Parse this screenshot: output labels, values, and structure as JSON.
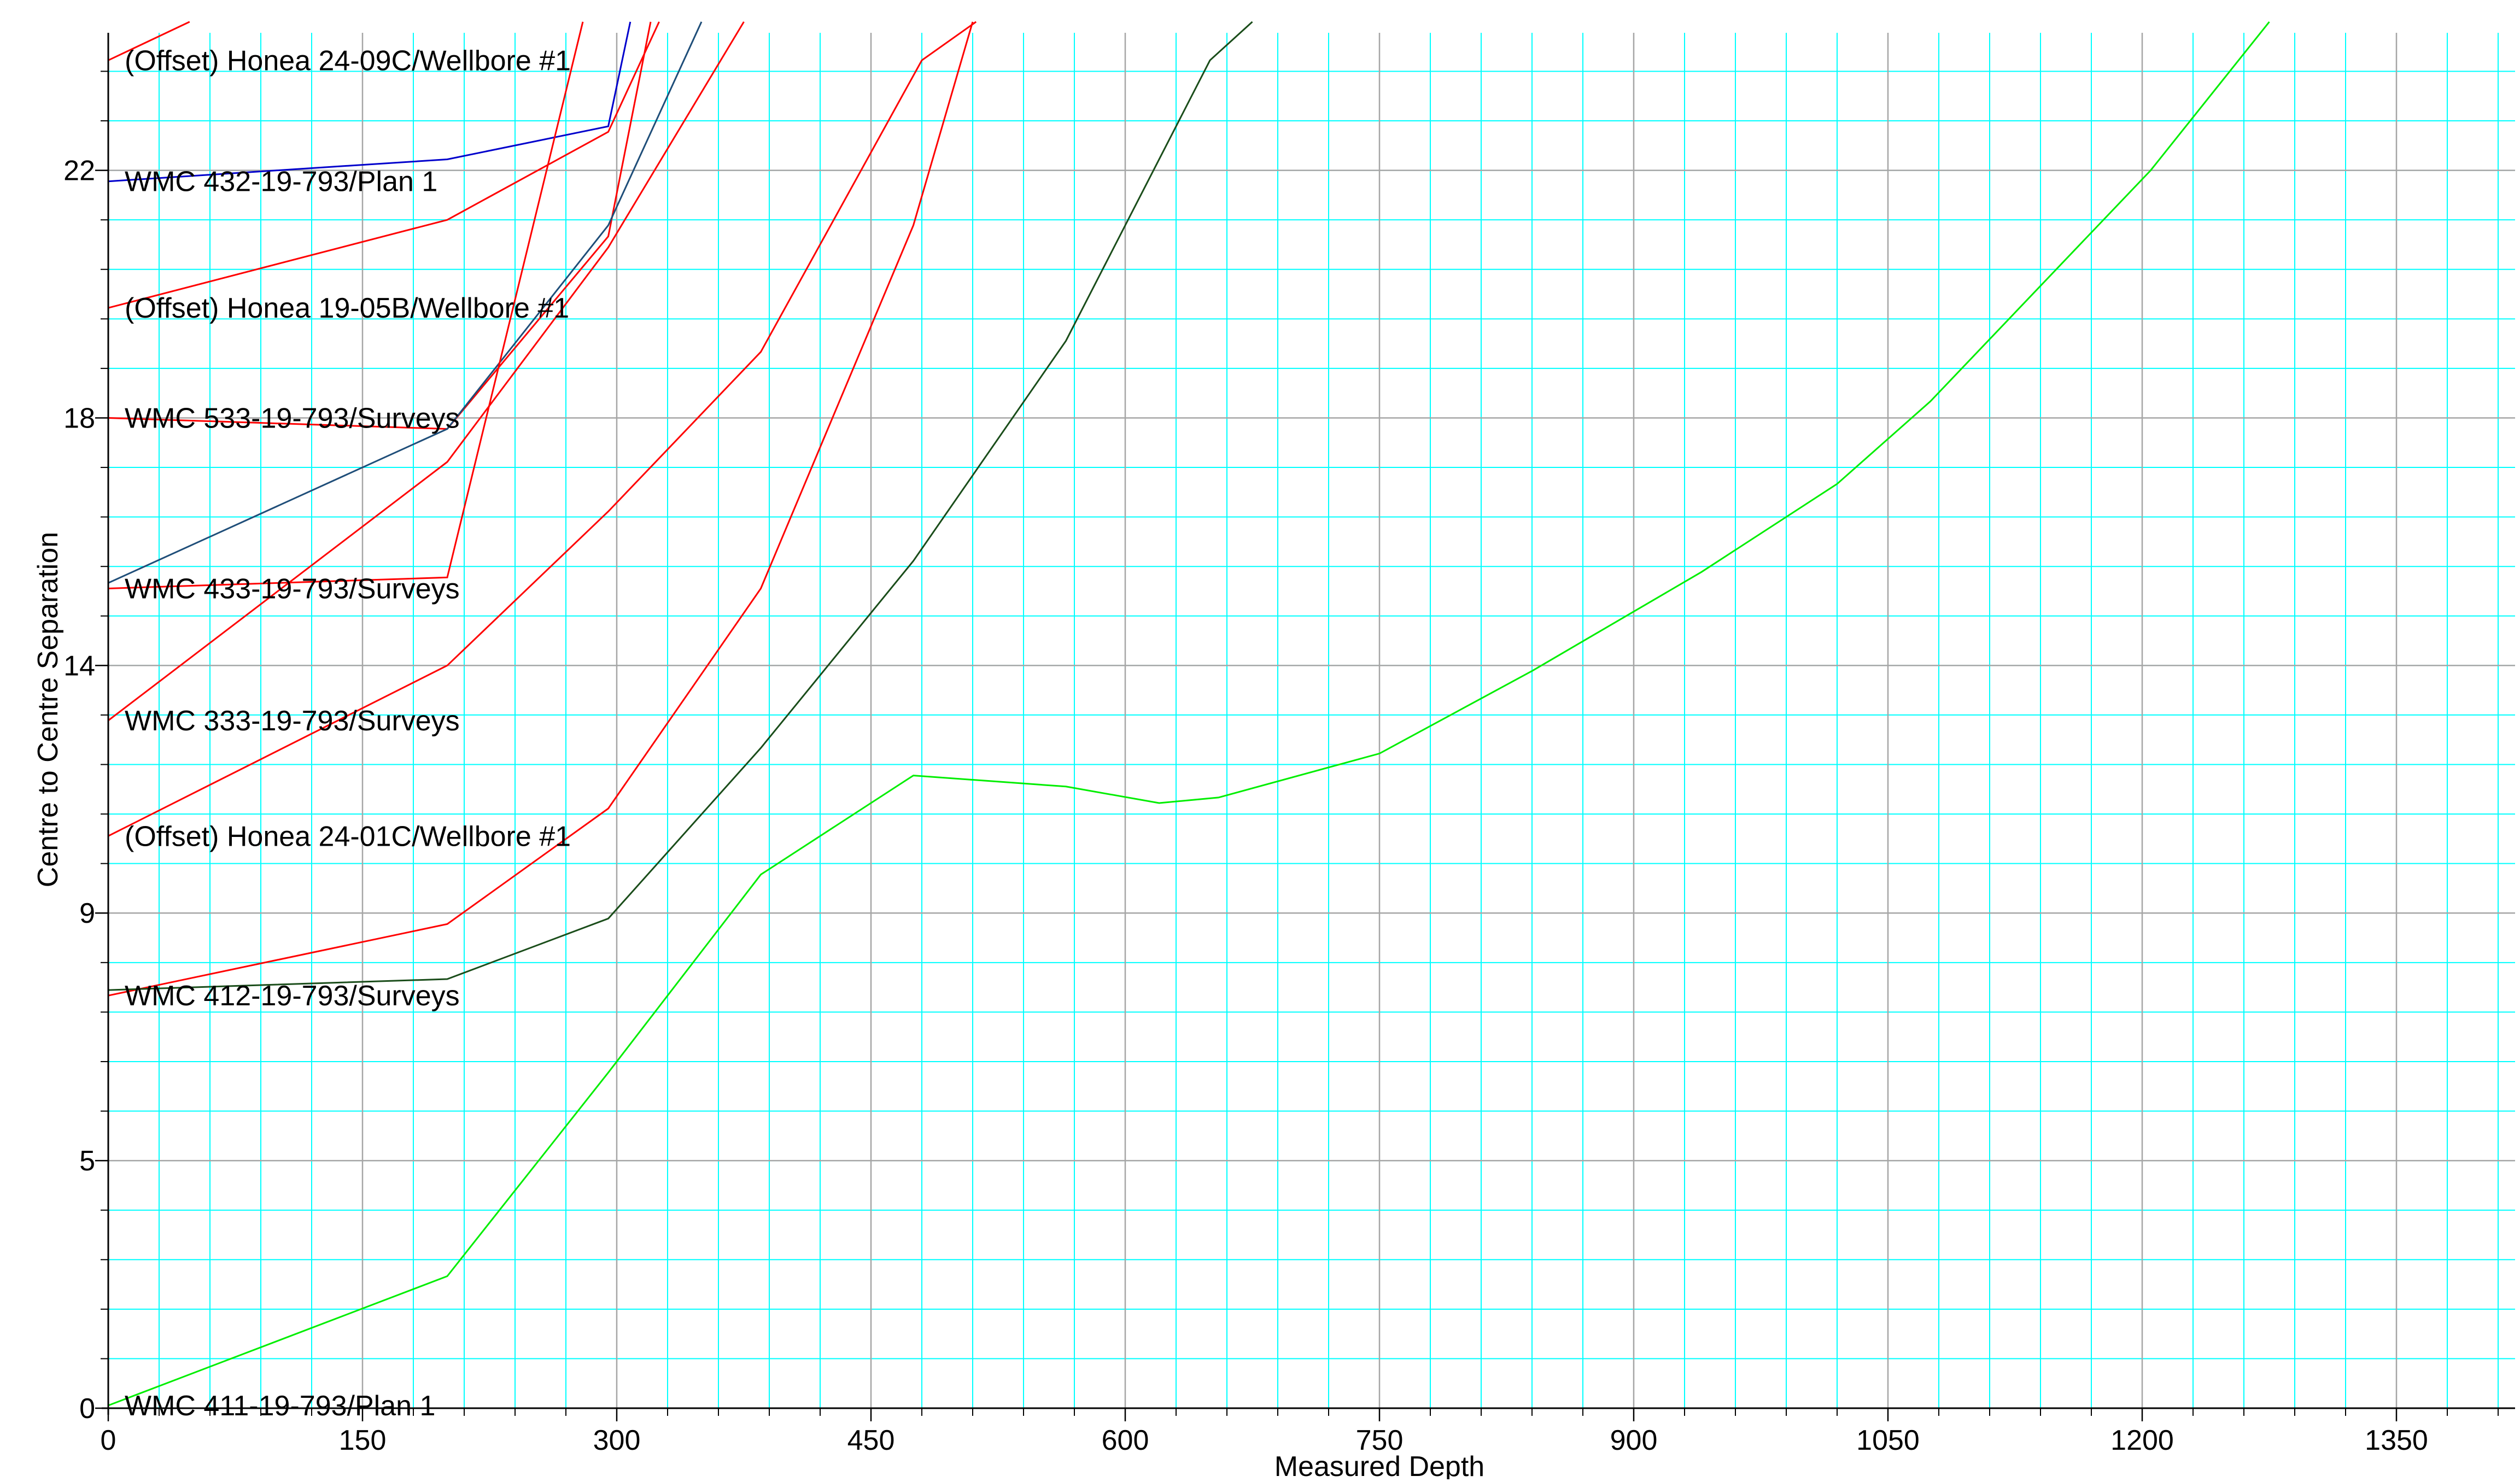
{
  "chart_data": {
    "type": "line",
    "title": "",
    "xlabel": "Measured Depth",
    "ylabel": "Centre to Centre Separation",
    "xlim": [
      0,
      1420
    ],
    "ylim": [
      0,
      25
    ],
    "x_ticks": [
      0,
      150,
      300,
      450,
      600,
      750,
      900,
      1050,
      1200,
      1350
    ],
    "y_ticks": [
      {
        "value": 0,
        "label": "0"
      },
      {
        "value": 4.5,
        "label": "5"
      },
      {
        "value": 9,
        "label": "9"
      },
      {
        "value": 13.5,
        "label": "14"
      },
      {
        "value": 18,
        "label": "18"
      },
      {
        "value": 22.5,
        "label": "22"
      }
    ],
    "grid": {
      "major": true,
      "minor": true,
      "minor_color": "#00ffff",
      "major_color": "#a6a6a6"
    },
    "series": [
      {
        "name": "(Offset) Honea 24-09C/Wellbore #1",
        "color": "#ff0000",
        "points": [
          [
            0,
            24.5
          ],
          [
            48,
            25.2
          ]
        ]
      },
      {
        "name": "WMC 432-19-793/Plan 1",
        "color": "#0000cc",
        "points": [
          [
            0,
            22.3
          ],
          [
            200,
            22.7
          ],
          [
            295,
            23.3
          ],
          [
            308,
            25.2
          ]
        ]
      },
      {
        "name": "(Offset) Honea 19-05B/Wellbore #1",
        "color": "#ff0000",
        "points": [
          [
            0,
            20.0
          ],
          [
            200,
            21.6
          ],
          [
            295,
            23.2
          ],
          [
            325,
            25.2
          ]
        ]
      },
      {
        "name": "WMC 533-19-793/Surveys",
        "color": "#ff0000",
        "points": [
          [
            0,
            18.0
          ],
          [
            200,
            17.8
          ],
          [
            295,
            21.3
          ],
          [
            320,
            25.2
          ]
        ]
      },
      {
        "name": "",
        "color": "#1f4e79",
        "points": [
          [
            0,
            15.0
          ],
          [
            200,
            17.8
          ],
          [
            295,
            21.5
          ],
          [
            350,
            25.2
          ]
        ]
      },
      {
        "name": "WMC 433-19-793/Surveys",
        "color": "#ff0000",
        "points": [
          [
            0,
            14.9
          ],
          [
            200,
            15.1
          ],
          [
            280,
            25.2
          ]
        ]
      },
      {
        "name": "WMC 333-19-793/Surveys",
        "color": "#ff0000",
        "points": [
          [
            0,
            12.5
          ],
          [
            200,
            17.2
          ],
          [
            295,
            21.1
          ],
          [
            375,
            25.2
          ]
        ]
      },
      {
        "name": "(Offset) Honea 24-01C/Wellbore #1",
        "color": "#ff0000",
        "points": [
          [
            0,
            10.4
          ],
          [
            200,
            13.5
          ],
          [
            295,
            16.3
          ],
          [
            385,
            19.2
          ],
          [
            480,
            24.5
          ],
          [
            512,
            25.2
          ]
        ]
      },
      {
        "name": "WMC 412-19-793/Surveys",
        "color": "#ff0000",
        "points": [
          [
            0,
            7.5
          ],
          [
            200,
            8.8
          ],
          [
            295,
            10.9
          ],
          [
            385,
            14.9
          ],
          [
            475,
            21.5
          ],
          [
            510,
            25.2
          ]
        ]
      },
      {
        "name": "",
        "color": "#1a4d1a",
        "points": [
          [
            0,
            7.6
          ],
          [
            200,
            7.8
          ],
          [
            295,
            8.9
          ],
          [
            385,
            12.0
          ],
          [
            475,
            15.4
          ],
          [
            565,
            19.4
          ],
          [
            650,
            24.5
          ],
          [
            675,
            25.2
          ]
        ]
      },
      {
        "name": "WMC 411-19-793/Plan 1",
        "color": "#00ee00",
        "points": [
          [
            0,
            0.05
          ],
          [
            200,
            2.4
          ],
          [
            295,
            6.1
          ],
          [
            385,
            9.7
          ],
          [
            475,
            11.5
          ],
          [
            565,
            11.3
          ],
          [
            620,
            11.0
          ],
          [
            655,
            11.1
          ],
          [
            750,
            11.9
          ],
          [
            840,
            13.4
          ],
          [
            940,
            15.2
          ],
          [
            1020,
            16.8
          ],
          [
            1075,
            18.3
          ],
          [
            1205,
            22.5
          ],
          [
            1275,
            25.2
          ]
        ]
      }
    ]
  }
}
